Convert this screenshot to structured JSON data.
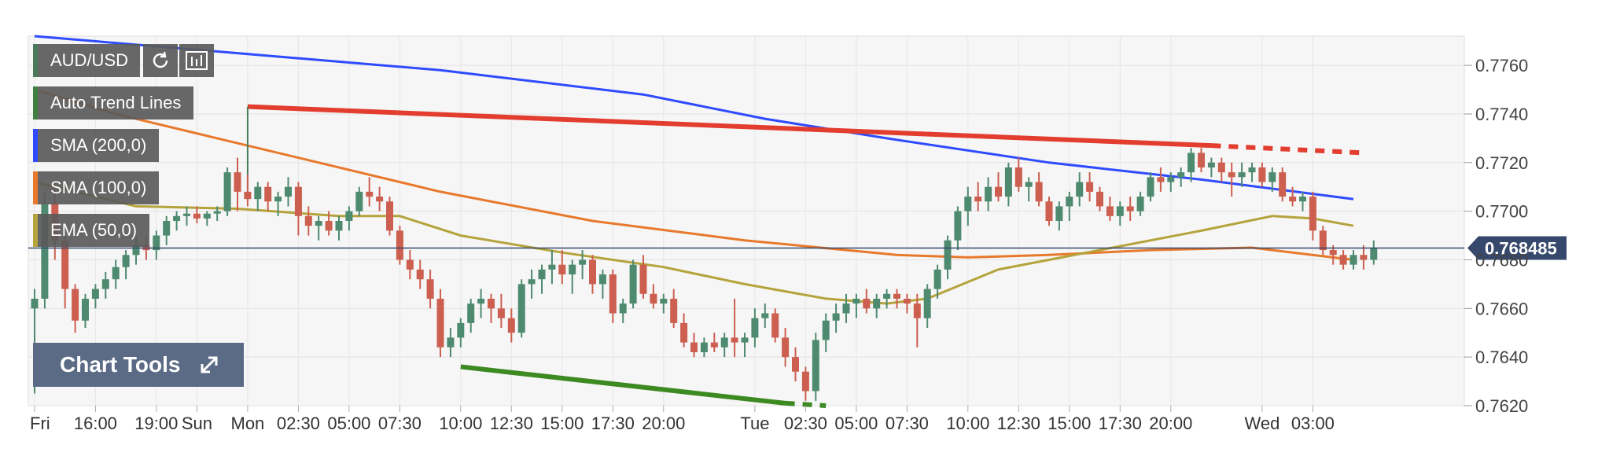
{
  "symbol": "AUD/USD",
  "toolbar": {
    "refresh_icon": "refresh-icon",
    "candle_icon": "candle-settings-icon"
  },
  "indicators": [
    {
      "label": "Auto Trend Lines",
      "color": "#3f7f3f"
    },
    {
      "label": "SMA (200,0)",
      "color": "#2f4bff"
    },
    {
      "label": "SMA (100,0)",
      "color": "#e8792c"
    },
    {
      "label": "EMA (50,0)",
      "color": "#b5a33c"
    }
  ],
  "chart_tools": {
    "label": "Chart Tools",
    "icon": "expand-icon"
  },
  "chart_data": {
    "type": "candlestick",
    "ylim": [
      0.762,
      0.7772
    ],
    "y_ticks": [
      "0.7760",
      "0.7740",
      "0.7720",
      "0.7700",
      "0.7680",
      "0.7660",
      "0.7640",
      "0.7620"
    ],
    "y_tick_values": [
      0.776,
      0.774,
      0.772,
      0.77,
      0.768,
      0.766,
      0.764,
      0.762
    ],
    "x_ticks": [
      "Fri",
      "16:00",
      "19:00",
      "Sun",
      "Mon",
      "02:30",
      "05:00",
      "07:30",
      "10:00",
      "12:30",
      "15:00",
      "17:30",
      "20:00",
      "Tue",
      "02:30",
      "05:00",
      "07:30",
      "10:00",
      "12:30",
      "15:00",
      "17:30",
      "20:00",
      "Wed",
      "03:00"
    ],
    "x_tick_index": [
      0,
      6,
      12,
      16,
      21,
      26,
      31,
      36,
      42,
      47,
      52,
      57,
      62,
      71,
      76,
      81,
      86,
      92,
      97,
      102,
      107,
      112,
      121,
      126
    ],
    "current_price": 0.768485,
    "current_price_label": "0.768485",
    "candles": [
      [
        0.766,
        0.7668,
        0.7625,
        0.7664
      ],
      [
        0.7664,
        0.7708,
        0.766,
        0.7703
      ],
      [
        0.7703,
        0.7712,
        0.768,
        0.7688
      ],
      [
        0.7688,
        0.769,
        0.766,
        0.7668
      ],
      [
        0.7668,
        0.767,
        0.765,
        0.7655
      ],
      [
        0.7655,
        0.7666,
        0.7652,
        0.7664
      ],
      [
        0.7664,
        0.767,
        0.766,
        0.7668
      ],
      [
        0.7668,
        0.7675,
        0.7664,
        0.7672
      ],
      [
        0.7672,
        0.768,
        0.7668,
        0.7677
      ],
      [
        0.7677,
        0.7684,
        0.7672,
        0.7682
      ],
      [
        0.7682,
        0.769,
        0.7678,
        0.7686
      ],
      [
        0.7686,
        0.769,
        0.768,
        0.7684
      ],
      [
        0.7684,
        0.7692,
        0.768,
        0.769
      ],
      [
        0.769,
        0.7698,
        0.7686,
        0.7696
      ],
      [
        0.7696,
        0.77,
        0.7692,
        0.7698
      ],
      [
        0.7698,
        0.7702,
        0.7694,
        0.7699
      ],
      [
        0.7699,
        0.7702,
        0.7695,
        0.7697
      ],
      [
        0.7697,
        0.77,
        0.7694,
        0.7699
      ],
      [
        0.7699,
        0.7702,
        0.7696,
        0.77
      ],
      [
        0.77,
        0.7718,
        0.7698,
        0.7716
      ],
      [
        0.7716,
        0.7722,
        0.77,
        0.7708
      ],
      [
        0.7708,
        0.7715,
        0.7702,
        0.7705
      ],
      [
        0.7705,
        0.7712,
        0.77,
        0.771
      ],
      [
        0.771,
        0.7712,
        0.77,
        0.7704
      ],
      [
        0.7704,
        0.7708,
        0.7698,
        0.7706
      ],
      [
        0.7706,
        0.7714,
        0.7702,
        0.771
      ],
      [
        0.771,
        0.7712,
        0.769,
        0.7698
      ],
      [
        0.7698,
        0.7702,
        0.769,
        0.7694
      ],
      [
        0.7694,
        0.7698,
        0.7688,
        0.7696
      ],
      [
        0.7696,
        0.77,
        0.769,
        0.7692
      ],
      [
        0.7692,
        0.7698,
        0.7688,
        0.7696
      ],
      [
        0.7696,
        0.7702,
        0.7692,
        0.77
      ],
      [
        0.77,
        0.771,
        0.7698,
        0.7708
      ],
      [
        0.7708,
        0.7714,
        0.7702,
        0.7706
      ],
      [
        0.7706,
        0.771,
        0.77,
        0.7704
      ],
      [
        0.7704,
        0.7706,
        0.769,
        0.7692
      ],
      [
        0.7692,
        0.7694,
        0.7678,
        0.768
      ],
      [
        0.768,
        0.7684,
        0.7672,
        0.7676
      ],
      [
        0.7676,
        0.768,
        0.7668,
        0.7672
      ],
      [
        0.7672,
        0.7676,
        0.766,
        0.7664
      ],
      [
        0.7664,
        0.7668,
        0.764,
        0.7644
      ],
      [
        0.7644,
        0.7652,
        0.764,
        0.7648
      ],
      [
        0.7648,
        0.7656,
        0.7644,
        0.7654
      ],
      [
        0.7654,
        0.7664,
        0.765,
        0.7662
      ],
      [
        0.7662,
        0.7668,
        0.7656,
        0.7664
      ],
      [
        0.7664,
        0.7666,
        0.7654,
        0.766
      ],
      [
        0.766,
        0.7666,
        0.7652,
        0.7656
      ],
      [
        0.7656,
        0.766,
        0.7646,
        0.765
      ],
      [
        0.765,
        0.7672,
        0.7648,
        0.767
      ],
      [
        0.767,
        0.7676,
        0.7664,
        0.7672
      ],
      [
        0.7672,
        0.7678,
        0.7666,
        0.7676
      ],
      [
        0.7676,
        0.7684,
        0.767,
        0.7678
      ],
      [
        0.7678,
        0.7684,
        0.767,
        0.7674
      ],
      [
        0.7674,
        0.768,
        0.7666,
        0.7678
      ],
      [
        0.7678,
        0.7684,
        0.7672,
        0.768
      ],
      [
        0.768,
        0.7682,
        0.7666,
        0.767
      ],
      [
        0.767,
        0.7676,
        0.7664,
        0.7674
      ],
      [
        0.7674,
        0.7676,
        0.7654,
        0.7658
      ],
      [
        0.7658,
        0.7664,
        0.7654,
        0.7662
      ],
      [
        0.7662,
        0.768,
        0.766,
        0.7678
      ],
      [
        0.7678,
        0.7682,
        0.7664,
        0.7666
      ],
      [
        0.7666,
        0.767,
        0.766,
        0.7662
      ],
      [
        0.7662,
        0.7666,
        0.7658,
        0.7664
      ],
      [
        0.7664,
        0.7668,
        0.7652,
        0.7654
      ],
      [
        0.7654,
        0.7658,
        0.7644,
        0.7646
      ],
      [
        0.7646,
        0.765,
        0.764,
        0.7642
      ],
      [
        0.7642,
        0.7648,
        0.764,
        0.7646
      ],
      [
        0.7646,
        0.765,
        0.7642,
        0.7644
      ],
      [
        0.7644,
        0.765,
        0.764,
        0.7648
      ],
      [
        0.7648,
        0.7664,
        0.764,
        0.7646
      ],
      [
        0.7646,
        0.765,
        0.764,
        0.7648
      ],
      [
        0.7648,
        0.766,
        0.7644,
        0.7656
      ],
      [
        0.7656,
        0.7662,
        0.7652,
        0.7658
      ],
      [
        0.7658,
        0.766,
        0.7646,
        0.7648
      ],
      [
        0.7648,
        0.7652,
        0.7636,
        0.764
      ],
      [
        0.764,
        0.7644,
        0.763,
        0.7634
      ],
      [
        0.7634,
        0.7636,
        0.7622,
        0.7626
      ],
      [
        0.7626,
        0.765,
        0.7622,
        0.7647
      ],
      [
        0.7647,
        0.7658,
        0.7642,
        0.7655
      ],
      [
        0.7655,
        0.7662,
        0.765,
        0.7658
      ],
      [
        0.7658,
        0.7666,
        0.7654,
        0.7662
      ],
      [
        0.7662,
        0.7666,
        0.7656,
        0.7664
      ],
      [
        0.7664,
        0.7668,
        0.7658,
        0.766
      ],
      [
        0.766,
        0.7666,
        0.7656,
        0.7664
      ],
      [
        0.7664,
        0.7668,
        0.766,
        0.7666
      ],
      [
        0.7666,
        0.7668,
        0.766,
        0.7664
      ],
      [
        0.7664,
        0.7666,
        0.7658,
        0.7662
      ],
      [
        0.7662,
        0.7666,
        0.7644,
        0.7656
      ],
      [
        0.7656,
        0.767,
        0.7652,
        0.7668
      ],
      [
        0.7668,
        0.7678,
        0.7664,
        0.7676
      ],
      [
        0.7676,
        0.769,
        0.7672,
        0.7688
      ],
      [
        0.7688,
        0.7702,
        0.7684,
        0.77
      ],
      [
        0.77,
        0.771,
        0.7694,
        0.7706
      ],
      [
        0.7706,
        0.7712,
        0.77,
        0.7704
      ],
      [
        0.7704,
        0.7714,
        0.77,
        0.771
      ],
      [
        0.771,
        0.7716,
        0.7704,
        0.7706
      ],
      [
        0.7706,
        0.772,
        0.7702,
        0.7718
      ],
      [
        0.7718,
        0.7722,
        0.7708,
        0.771
      ],
      [
        0.771,
        0.7714,
        0.7704,
        0.7712
      ],
      [
        0.7712,
        0.7716,
        0.7702,
        0.7704
      ],
      [
        0.7704,
        0.7706,
        0.7694,
        0.7696
      ],
      [
        0.7696,
        0.7704,
        0.7692,
        0.7702
      ],
      [
        0.7702,
        0.7708,
        0.7696,
        0.7706
      ],
      [
        0.7706,
        0.7716,
        0.7702,
        0.7712
      ],
      [
        0.7712,
        0.7716,
        0.7704,
        0.7708
      ],
      [
        0.7708,
        0.771,
        0.77,
        0.7702
      ],
      [
        0.7702,
        0.7706,
        0.7696,
        0.7698
      ],
      [
        0.7698,
        0.7704,
        0.7694,
        0.7702
      ],
      [
        0.7702,
        0.7706,
        0.7696,
        0.77
      ],
      [
        0.77,
        0.7708,
        0.7698,
        0.7706
      ],
      [
        0.7706,
        0.7716,
        0.7704,
        0.7714
      ],
      [
        0.7714,
        0.7718,
        0.7708,
        0.7712
      ],
      [
        0.7712,
        0.7716,
        0.7708,
        0.7714
      ],
      [
        0.7714,
        0.7718,
        0.771,
        0.7716
      ],
      [
        0.7716,
        0.7726,
        0.7712,
        0.7724
      ],
      [
        0.7724,
        0.7726,
        0.7716,
        0.7718
      ],
      [
        0.7718,
        0.7722,
        0.7714,
        0.772
      ],
      [
        0.772,
        0.7722,
        0.7712,
        0.7716
      ],
      [
        0.7716,
        0.772,
        0.7706,
        0.7714
      ],
      [
        0.7714,
        0.772,
        0.771,
        0.7716
      ],
      [
        0.7716,
        0.772,
        0.7712,
        0.7718
      ],
      [
        0.7718,
        0.772,
        0.771,
        0.7712
      ],
      [
        0.7712,
        0.7718,
        0.7708,
        0.7716
      ],
      [
        0.7716,
        0.7718,
        0.7704,
        0.7706
      ],
      [
        0.7706,
        0.771,
        0.7702,
        0.7704
      ],
      [
        0.7704,
        0.7708,
        0.77,
        0.7706
      ],
      [
        0.7706,
        0.7708,
        0.7688,
        0.7692
      ],
      [
        0.7692,
        0.7694,
        0.7682,
        0.7684
      ],
      [
        0.7684,
        0.7686,
        0.7678,
        0.7682
      ],
      [
        0.7682,
        0.7684,
        0.7676,
        0.7678
      ],
      [
        0.7678,
        0.7684,
        0.7676,
        0.7682
      ],
      [
        0.7682,
        0.7686,
        0.7676,
        0.768
      ],
      [
        0.768,
        0.7688,
        0.7678,
        0.76848
      ]
    ],
    "series": [
      {
        "values_key": "sma200",
        "color": "#2f4bff",
        "points": [
          [
            0,
            0.7772
          ],
          [
            20,
            0.7765
          ],
          [
            40,
            0.7758
          ],
          [
            60,
            0.7748
          ],
          [
            72,
            0.7738
          ],
          [
            84,
            0.773
          ],
          [
            100,
            0.772
          ],
          [
            115,
            0.7713
          ],
          [
            130,
            0.7705
          ]
        ]
      },
      {
        "values_key": "sma100",
        "color": "#e8792c",
        "points": [
          [
            0,
            0.775
          ],
          [
            8,
            0.774
          ],
          [
            18,
            0.773
          ],
          [
            28,
            0.772
          ],
          [
            40,
            0.7708
          ],
          [
            55,
            0.7696
          ],
          [
            70,
            0.7688
          ],
          [
            85,
            0.7682
          ],
          [
            92,
            0.7681
          ],
          [
            100,
            0.7682
          ],
          [
            110,
            0.7684
          ],
          [
            120,
            0.7685
          ],
          [
            130,
            0.768
          ]
        ]
      },
      {
        "values_key": "ema50",
        "color": "#b5a33c",
        "points": [
          [
            0,
            0.7712
          ],
          [
            10,
            0.7702
          ],
          [
            20,
            0.7701
          ],
          [
            30,
            0.7698
          ],
          [
            36,
            0.7698
          ],
          [
            42,
            0.769
          ],
          [
            52,
            0.7683
          ],
          [
            62,
            0.7677
          ],
          [
            70,
            0.767
          ],
          [
            78,
            0.7664
          ],
          [
            84,
            0.7662
          ],
          [
            88,
            0.7664
          ],
          [
            95,
            0.7676
          ],
          [
            105,
            0.7684
          ],
          [
            115,
            0.7692
          ],
          [
            122,
            0.7698
          ],
          [
            126,
            0.7697
          ],
          [
            130,
            0.7694
          ]
        ]
      }
    ],
    "trend_lines": [
      {
        "color": "#e23d2e",
        "points": [
          [
            21,
            0.7743
          ],
          [
            116,
            0.7727
          ]
        ],
        "extension": [
          [
            116,
            0.7727
          ],
          [
            131,
            0.7724
          ]
        ],
        "dashed_extension": true
      },
      {
        "color": "#3d8a22",
        "points": [
          [
            42,
            0.7636
          ],
          [
            74,
            0.7621
          ]
        ],
        "extension": [
          [
            74,
            0.7621
          ],
          [
            78,
            0.762
          ]
        ],
        "dashed_extension": true
      }
    ],
    "grid": true
  }
}
